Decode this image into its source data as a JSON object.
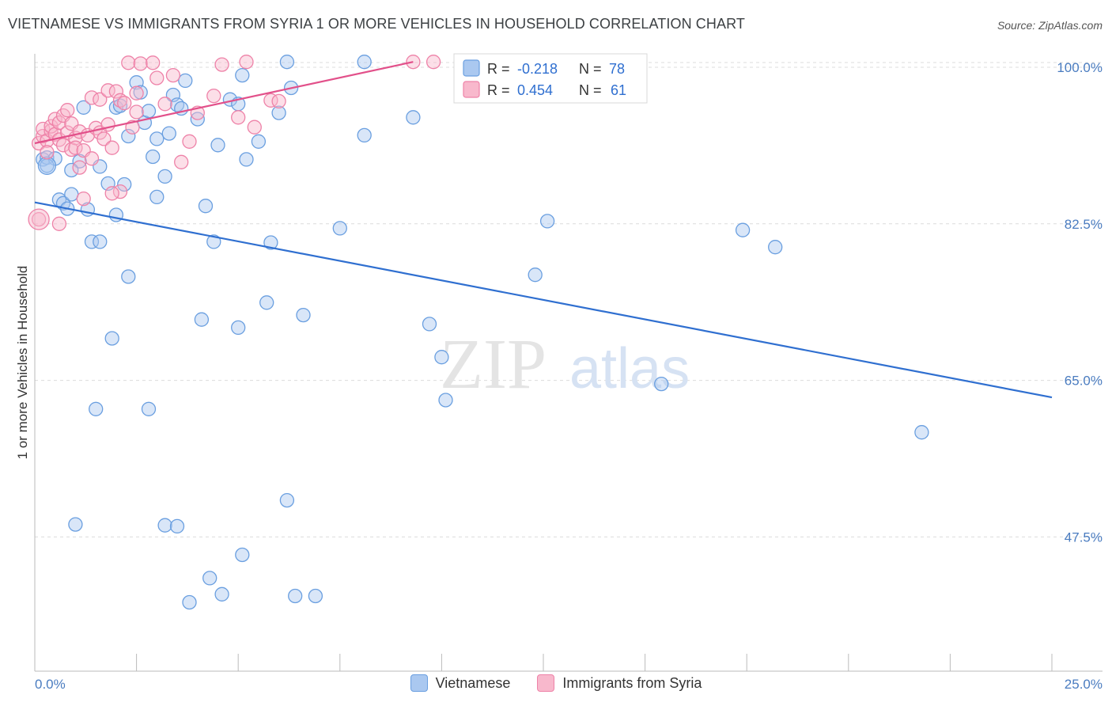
{
  "chart_data": {
    "type": "scatter",
    "title": "VIETNAMESE VS IMMIGRANTS FROM SYRIA 1 OR MORE VEHICLES IN HOUSEHOLD CORRELATION CHART",
    "source": "Source: ZipAtlas.com",
    "watermark": {
      "zip": "ZIP",
      "atlas": "atlas"
    },
    "xlabel": "",
    "ylabel": "1 or more Vehicles in Household",
    "xlim": [
      0,
      25
    ],
    "ylim": [
      32.5,
      101.5
    ],
    "x_tick_labels": [
      "0.0%",
      "25.0%"
    ],
    "y_ticks": [
      {
        "value": 100.0,
        "label": "100.0%"
      },
      {
        "value": 82.5,
        "label": "82.5%"
      },
      {
        "value": 65.0,
        "label": "65.0%"
      },
      {
        "value": 47.5,
        "label": "47.5%"
      }
    ],
    "legend": {
      "rows": [
        {
          "r_label": "R =",
          "r_value": "-0.218",
          "n_label": "N =",
          "n_value": "78"
        },
        {
          "r_label": "R =",
          "r_value": "0.454",
          "n_label": "N =",
          "n_value": "61"
        }
      ]
    },
    "series": [
      {
        "name": "Vietnamese",
        "color": "#6a9fe0",
        "fill": "#aac8f0",
        "trend": {
          "x": [
            0,
            25
          ],
          "y": [
            84.9,
            63.1
          ],
          "color": "#2f6fd0"
        },
        "points": [
          [
            0.2,
            89.7
          ],
          [
            0.3,
            89.9
          ],
          [
            0.5,
            89.8
          ],
          [
            0.6,
            85.2
          ],
          [
            0.7,
            84.8
          ],
          [
            0.8,
            84.2
          ],
          [
            0.9,
            85.8
          ],
          [
            1.1,
            89.5
          ],
          [
            1.2,
            95.5
          ],
          [
            1.3,
            84.1
          ],
          [
            1.4,
            80.5
          ],
          [
            1.6,
            80.5
          ],
          [
            1.8,
            87.0
          ],
          [
            1.9,
            69.7
          ],
          [
            2.0,
            95.5
          ],
          [
            2.1,
            95.7
          ],
          [
            2.2,
            86.9
          ],
          [
            2.3,
            92.3
          ],
          [
            2.3,
            76.6
          ],
          [
            2.5,
            98.3
          ],
          [
            2.6,
            97.2
          ],
          [
            2.7,
            93.8
          ],
          [
            2.8,
            95.1
          ],
          [
            2.9,
            90.0
          ],
          [
            3.0,
            92.0
          ],
          [
            3.2,
            87.8
          ],
          [
            3.3,
            92.6
          ],
          [
            3.4,
            96.9
          ],
          [
            3.5,
            95.8
          ],
          [
            3.6,
            95.4
          ],
          [
            3.7,
            98.5
          ],
          [
            4.0,
            94.2
          ],
          [
            4.1,
            71.8
          ],
          [
            4.2,
            84.5
          ],
          [
            4.4,
            80.5
          ],
          [
            4.5,
            91.3
          ],
          [
            4.8,
            96.4
          ],
          [
            5.0,
            95.9
          ],
          [
            5.0,
            70.9
          ],
          [
            5.1,
            99.1
          ],
          [
            5.2,
            89.7
          ],
          [
            5.5,
            91.7
          ],
          [
            5.7,
            73.7
          ],
          [
            5.8,
            80.4
          ],
          [
            6.0,
            94.9
          ],
          [
            6.2,
            100.6
          ],
          [
            6.3,
            97.7
          ],
          [
            6.6,
            72.3
          ],
          [
            8.1,
            92.4
          ],
          [
            8.1,
            100.6
          ],
          [
            9.3,
            94.4
          ],
          [
            9.7,
            71.3
          ],
          [
            10.0,
            67.6
          ],
          [
            10.1,
            62.8
          ],
          [
            12.3,
            76.8
          ],
          [
            12.6,
            82.8
          ],
          [
            15.4,
            64.6
          ],
          [
            17.4,
            81.8
          ],
          [
            18.2,
            79.9
          ],
          [
            21.8,
            59.2
          ],
          [
            0.3,
            89.0
          ],
          [
            1.5,
            61.8
          ],
          [
            2.8,
            61.8
          ],
          [
            1.0,
            48.9
          ],
          [
            3.2,
            48.8
          ],
          [
            3.5,
            48.7
          ],
          [
            6.2,
            51.6
          ],
          [
            5.1,
            45.5
          ],
          [
            4.3,
            42.9
          ],
          [
            4.6,
            41.1
          ],
          [
            3.8,
            40.2
          ],
          [
            6.4,
            40.9
          ],
          [
            6.9,
            40.9
          ],
          [
            2.0,
            83.5
          ],
          [
            1.6,
            88.9
          ],
          [
            0.9,
            88.5
          ],
          [
            3.0,
            85.5
          ],
          [
            7.5,
            82.0
          ]
        ]
      },
      {
        "name": "Immigrants from Syria",
        "color": "#ee82a8",
        "fill": "#f8b8cc",
        "trend": {
          "x": [
            0,
            9.3
          ],
          "y": [
            91.5,
            100.6
          ],
          "color": "#e2508a"
        },
        "points": [
          [
            0.1,
            91.5
          ],
          [
            0.2,
            92.3
          ],
          [
            0.2,
            93.1
          ],
          [
            0.3,
            91.8
          ],
          [
            0.3,
            90.5
          ],
          [
            0.4,
            92.9
          ],
          [
            0.4,
            93.4
          ],
          [
            0.5,
            94.2
          ],
          [
            0.5,
            92.5
          ],
          [
            0.6,
            93.8
          ],
          [
            0.6,
            91.9
          ],
          [
            0.7,
            91.3
          ],
          [
            0.7,
            94.6
          ],
          [
            0.8,
            95.2
          ],
          [
            0.8,
            92.7
          ],
          [
            0.9,
            90.8
          ],
          [
            0.9,
            93.7
          ],
          [
            1.0,
            92.1
          ],
          [
            1.0,
            91.0
          ],
          [
            1.1,
            92.8
          ],
          [
            1.2,
            90.7
          ],
          [
            1.2,
            85.3
          ],
          [
            1.3,
            92.4
          ],
          [
            1.4,
            96.6
          ],
          [
            1.4,
            89.8
          ],
          [
            1.5,
            93.2
          ],
          [
            1.6,
            96.4
          ],
          [
            1.6,
            92.7
          ],
          [
            1.7,
            92.0
          ],
          [
            1.8,
            97.4
          ],
          [
            1.8,
            93.6
          ],
          [
            1.9,
            91.0
          ],
          [
            2.0,
            97.3
          ],
          [
            2.1,
            96.3
          ],
          [
            2.1,
            86.1
          ],
          [
            2.2,
            96.0
          ],
          [
            2.3,
            100.5
          ],
          [
            2.4,
            93.3
          ],
          [
            2.5,
            97.1
          ],
          [
            2.5,
            95.0
          ],
          [
            2.6,
            100.4
          ],
          [
            2.9,
            100.5
          ],
          [
            3.0,
            98.8
          ],
          [
            3.2,
            95.9
          ],
          [
            3.4,
            99.1
          ],
          [
            3.6,
            89.4
          ],
          [
            3.8,
            91.7
          ],
          [
            4.0,
            94.9
          ],
          [
            4.4,
            96.8
          ],
          [
            4.6,
            100.3
          ],
          [
            5.0,
            94.4
          ],
          [
            5.2,
            100.6
          ],
          [
            5.4,
            93.3
          ],
          [
            5.8,
            96.3
          ],
          [
            6.0,
            96.2
          ],
          [
            9.3,
            100.6
          ],
          [
            9.8,
            100.6
          ],
          [
            0.1,
            83.0
          ],
          [
            0.6,
            82.5
          ],
          [
            1.9,
            85.9
          ],
          [
            1.1,
            88.8
          ]
        ]
      }
    ]
  }
}
